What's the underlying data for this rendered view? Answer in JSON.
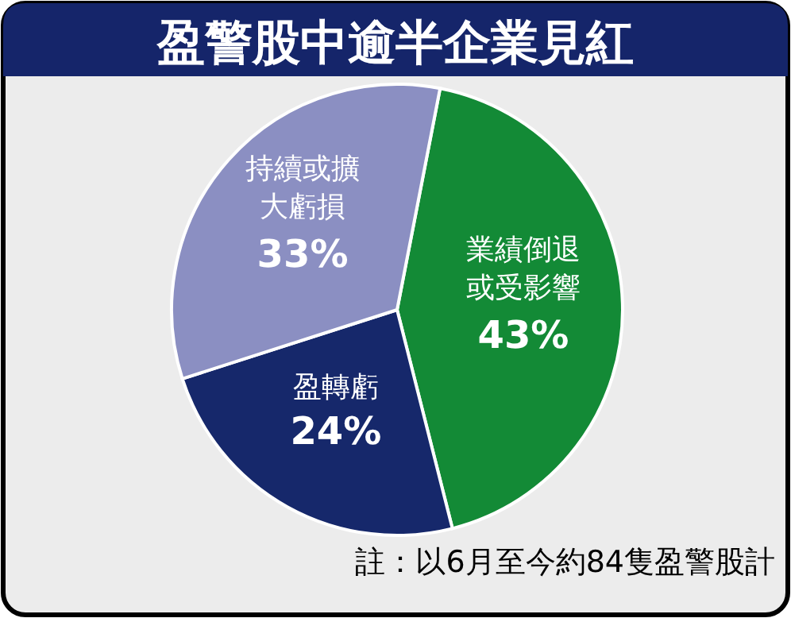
{
  "chart_data": {
    "type": "pie",
    "title": "盈警股中逾半企業見紅",
    "categories": [
      "業績倒退或受影響",
      "盈轉虧",
      "持續或擴大虧損"
    ],
    "values": [
      43,
      24,
      33
    ],
    "colors": [
      "#138a36",
      "#16286b",
      "#8b8fc2"
    ],
    "value_labels": [
      "43%",
      "24%",
      "33%"
    ],
    "annotations": [
      "註：以6月至今約84隻盈警股計"
    ]
  }
}
